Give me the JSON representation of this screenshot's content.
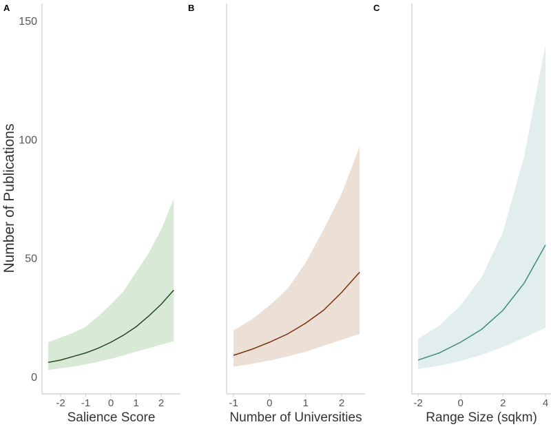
{
  "chart_data": {
    "type": "area",
    "ylabel": "Number of Publications",
    "ylim": [
      0,
      150
    ],
    "yticks": [
      0,
      50,
      100,
      150
    ],
    "panels": [
      {
        "tag": "A",
        "xlabel": "Salience Score",
        "xlim": [
          -2.8,
          2.8
        ],
        "xticks": [
          -2,
          -1,
          0,
          1,
          2
        ],
        "xtick_labels": [
          "-2",
          "-1",
          "0",
          "1",
          "2"
        ],
        "line_color": "#1f4a1f",
        "band_color": "#d8e9d6",
        "x": [
          -2.5,
          -2.0,
          -1.5,
          -1.0,
          -0.5,
          0.0,
          0.5,
          1.0,
          1.5,
          2.0,
          2.5
        ],
        "mean": [
          6.0,
          7.0,
          8.5,
          10.0,
          12.0,
          14.5,
          17.5,
          21.0,
          25.5,
          30.5,
          36.5
        ],
        "lower": [
          2.8,
          3.5,
          4.2,
          5.2,
          6.3,
          7.5,
          9.0,
          10.5,
          12.0,
          13.5,
          15.0
        ],
        "upper": [
          14.5,
          16.5,
          18.5,
          21.0,
          25.5,
          30.5,
          36.0,
          44.0,
          52.0,
          62.0,
          75.0
        ]
      },
      {
        "tag": "B",
        "xlabel": "Number of Universities",
        "xlim": [
          -1.1,
          2.6
        ],
        "xticks": [
          -1,
          0,
          1,
          2
        ],
        "xtick_labels": [
          "-1",
          "0",
          "1",
          "2"
        ],
        "line_color": "#7a2e0a",
        "band_color": "#ecdfd5",
        "x": [
          -1.0,
          -0.5,
          0.0,
          0.5,
          1.0,
          1.5,
          2.0,
          2.5
        ],
        "mean": [
          9.0,
          11.5,
          14.5,
          18.0,
          22.5,
          28.0,
          35.5,
          44.0
        ],
        "lower": [
          4.2,
          5.4,
          6.8,
          8.5,
          10.5,
          13.0,
          15.5,
          18.0
        ],
        "upper": [
          19.5,
          24.0,
          30.0,
          37.0,
          48.0,
          62.0,
          77.0,
          97.0
        ]
      },
      {
        "tag": "C",
        "xlabel": "Range Size (sqkm)",
        "xlim": [
          -2.2,
          4.1
        ],
        "xticks": [
          -2,
          0,
          2,
          4
        ],
        "xtick_labels": [
          "-2",
          "0",
          "2",
          "4"
        ],
        "line_color": "#3e8a80",
        "band_color": "#e2eded",
        "x": [
          -2.0,
          -1.0,
          0.0,
          1.0,
          2.0,
          3.0,
          4.0
        ],
        "mean": [
          7.0,
          10.0,
          14.5,
          20.0,
          28.0,
          39.5,
          55.5
        ],
        "lower": [
          3.2,
          4.6,
          6.6,
          9.2,
          12.5,
          16.5,
          20.5
        ],
        "upper": [
          16.0,
          21.5,
          30.0,
          42.0,
          61.0,
          93.0,
          140.0
        ]
      }
    ]
  }
}
